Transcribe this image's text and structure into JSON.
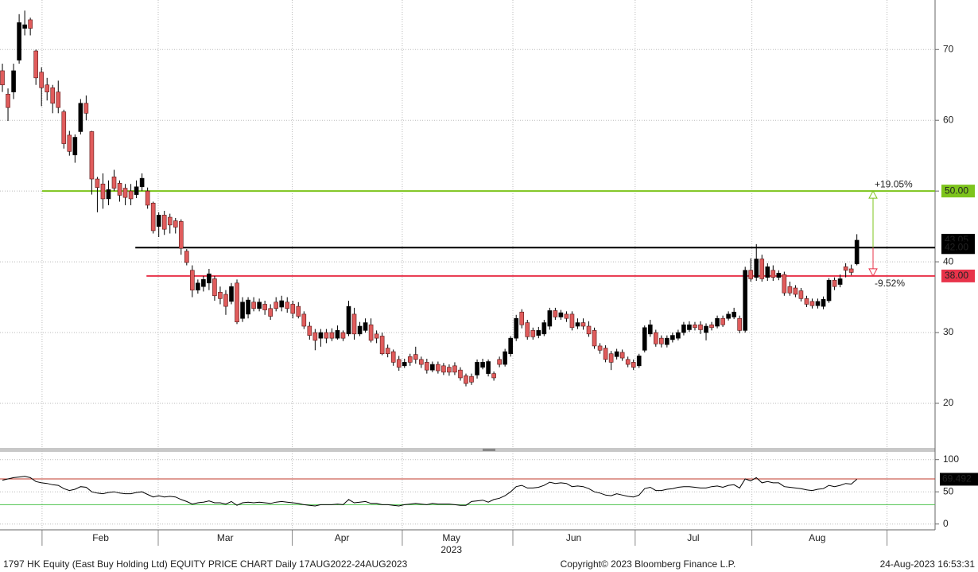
{
  "chart_data": [
    {
      "type": "candlestick",
      "open": [
        67,
        63.7,
        64,
        68.5,
        73,
        74.2,
        69.8,
        66.8,
        65,
        64.6,
        64,
        61.2,
        57.9,
        55.1,
        58.4,
        62.4,
        58.4,
        51.7,
        51,
        48.9,
        52,
        51.1,
        50.4,
        50,
        49.5,
        50.6,
        50,
        48.3,
        45,
        46.6,
        46.3,
        45.8,
        45.7,
        41.5,
        38.8,
        36,
        36.5,
        37,
        37.6,
        35.7,
        35.4,
        34.4,
        37,
        32,
        32.6,
        34.3,
        33.4,
        34,
        33.4,
        34.3,
        33.6,
        34.3,
        34,
        33.7,
        32.6,
        30.9,
        30,
        29.2,
        30,
        30,
        29.2,
        30,
        29.8,
        32.6,
        29.8,
        30.3,
        31.1,
        29.8,
        29.5,
        27.8,
        27.3,
        26.2,
        25.3,
        26.6,
        26.9,
        26.2,
        25.8,
        24.7,
        25.5,
        25.3,
        25.1,
        25.3,
        24.7,
        23.9,
        23.8,
        24,
        25.1,
        24.2,
        24.2,
        26.2,
        25.5,
        27,
        29.2,
        32.9,
        31.4,
        30.3,
        29.6,
        29.8,
        30.9,
        33.1,
        32.2,
        32.6,
        32.6,
        30.9,
        31.4,
        30.9,
        30.3,
        28.1,
        27.8,
        27,
        26.6,
        27.2,
        26.2,
        25.8,
        25.3,
        27.5,
        29.8,
        30,
        29.2,
        28.3,
        29,
        29.2,
        30,
        30.4,
        31.1,
        31.1,
        30,
        31.1,
        30.9,
        32,
        32,
        32.2,
        32,
        30.3,
        38.8,
        37.8,
        40.4,
        37.8,
        38.8,
        37.8,
        38.2,
        36.5,
        36.3,
        35.9,
        34.8,
        34.4,
        33.8,
        33.7,
        34.5,
        37.4,
        36.8,
        39.3,
        39,
        39.7
      ],
      "high": [
        68,
        64.5,
        68,
        75,
        75.5,
        74.5,
        70,
        67.5,
        66,
        65,
        65.6,
        61.5,
        58.5,
        58,
        63,
        63.5,
        58.5,
        52,
        52.5,
        51.5,
        53,
        51.5,
        51,
        51,
        51.5,
        52.5,
        50.5,
        48.5,
        47,
        47.2,
        46.8,
        46.2,
        46,
        41.8,
        39.5,
        37.5,
        38,
        39,
        38,
        36.5,
        36,
        37,
        37.5,
        35,
        35,
        35,
        34.8,
        34.5,
        34,
        35,
        35.2,
        35,
        34.5,
        34.3,
        33,
        31.5,
        30.5,
        30.5,
        30.5,
        30.6,
        31,
        30.3,
        34.5,
        33.5,
        31.5,
        32,
        32,
        30.3,
        30,
        28.3,
        27.6,
        26.7,
        26.3,
        27,
        28,
        26.6,
        26.3,
        25.9,
        25.9,
        25.7,
        25.5,
        25.8,
        25.1,
        24.2,
        24.2,
        26.2,
        26.3,
        26.2,
        24.5,
        26.6,
        27.7,
        29.5,
        32.5,
        33.3,
        31.8,
        30.7,
        30.8,
        31.8,
        33.5,
        33.5,
        33.2,
        33,
        33,
        32,
        32,
        31.6,
        30.7,
        28.5,
        28.2,
        27.4,
        27.7,
        27.6,
        26.6,
        26.2,
        27,
        31,
        31.8,
        30.4,
        29.6,
        29.6,
        30,
        30.4,
        31.5,
        31.6,
        31.5,
        31.6,
        31.3,
        31.5,
        32.4,
        32.4,
        33,
        33.5,
        32.4,
        39.3,
        40.5,
        42.5,
        41,
        39.8,
        39.5,
        38.8,
        38.6,
        37.2,
        36.7,
        36.3,
        35.2,
        34.8,
        34.8,
        35.1,
        37.7,
        37.8,
        38.2,
        39.8,
        39.6,
        43.9
      ],
      "low": [
        64,
        59.9,
        63,
        68,
        72,
        72,
        65,
        62,
        62.8,
        61,
        61,
        56,
        55,
        54,
        58,
        60,
        49.5,
        47,
        47.5,
        48,
        50,
        48.5,
        48,
        48,
        49,
        50,
        47.5,
        44,
        43.5,
        43.8,
        44,
        44,
        41,
        39.5,
        35,
        35.5,
        35.8,
        36,
        34.5,
        34,
        32.5,
        34,
        31.2,
        31.5,
        32,
        33,
        33,
        32.5,
        31.8,
        33,
        33,
        32.8,
        32,
        32,
        30.5,
        29,
        27.5,
        28,
        28.5,
        28.8,
        29,
        28.8,
        29.5,
        29,
        29.5,
        30,
        28.6,
        28.5,
        26.8,
        26.5,
        25.3,
        24.6,
        25,
        25.3,
        25.6,
        25,
        24.2,
        24.4,
        24.2,
        24,
        23.9,
        24,
        23.2,
        22.4,
        22.6,
        23.5,
        24.8,
        23.8,
        23.2,
        25.1,
        25.2,
        26.6,
        28.8,
        30.6,
        29,
        29,
        29.2,
        29.5,
        30.4,
        31.8,
        31.8,
        31.5,
        30.3,
        30.5,
        30.4,
        29.4,
        27.7,
        27,
        25.8,
        24.7,
        26.2,
        26,
        25.1,
        24.7,
        25,
        27.2,
        29.4,
        28,
        27.9,
        27.9,
        28.6,
        28.9,
        29.6,
        30.1,
        30.3,
        29.8,
        28.9,
        30.3,
        30.6,
        30.8,
        31.7,
        31.9,
        29.9,
        30,
        37.2,
        37.3,
        37.2,
        37.3,
        37.3,
        37.4,
        35.2,
        35.2,
        35,
        34.4,
        33.6,
        33.4,
        33.4,
        33.3,
        34.2,
        36,
        36.4,
        37.8,
        38.1,
        39.5
      ],
      "close": [
        65,
        61.8,
        67,
        73.8,
        73.5,
        73,
        66,
        64.6,
        64,
        62.4,
        61.8,
        56.7,
        55.6,
        57.6,
        62.4,
        61,
        51.7,
        50.5,
        48.9,
        50.2,
        50.4,
        49.4,
        49.1,
        48.9,
        50.6,
        51.8,
        48,
        44.4,
        46.6,
        44.6,
        45.2,
        44.9,
        41.9,
        39.9,
        36,
        37,
        37.5,
        38.3,
        35.2,
        34.8,
        33.7,
        36.5,
        31.5,
        34.3,
        34.6,
        33.4,
        34.3,
        33.2,
        32.3,
        33.4,
        34.5,
        33.4,
        32.7,
        32.3,
        30.9,
        29.6,
        28.9,
        30,
        29.2,
        29.2,
        30.3,
        29.2,
        33.7,
        29.8,
        30.9,
        31.4,
        28.9,
        29.2,
        27,
        27,
        25.8,
        25.1,
        25.8,
        25.8,
        26.2,
        25.5,
        24.7,
        25.5,
        24.6,
        24.4,
        24.4,
        24.4,
        23.6,
        22.8,
        23,
        25.8,
        25.8,
        25.9,
        23.6,
        25.5,
        27.3,
        29.2,
        32,
        31.1,
        29.4,
        29.4,
        30.3,
        31.4,
        33.1,
        32.2,
        32.8,
        32,
        30.7,
        31.4,
        30.9,
        29.8,
        28.1,
        27.5,
        26.2,
        25.8,
        27.3,
        26.4,
        25.5,
        25.1,
        26.7,
        30.7,
        31.1,
        28.4,
        28.4,
        29.2,
        29.6,
        30,
        31.1,
        31.1,
        30.7,
        30.4,
        30.9,
        30.7,
        32,
        31.1,
        32.6,
        32.9,
        30.3,
        38.8,
        37.6,
        40.4,
        37.6,
        39.3,
        37.8,
        38.4,
        35.6,
        35.6,
        35.4,
        34.8,
        34,
        33.8,
        34.4,
        34.7,
        37.4,
        36.5,
        37.6,
        38.8,
        38.5,
        43.05
      ],
      "ylim": [
        13.7,
        77
      ],
      "yticks": [
        20,
        30,
        40,
        50,
        60,
        70
      ],
      "xlim": [
        -0.43,
        167
      ],
      "xticks": [
        7.1,
        27.9,
        51.9,
        71.6,
        91.4,
        113.3,
        134.2,
        158.4
      ],
      "xlabels": [
        {
          "value": 17.6,
          "label": "Feb"
        },
        {
          "value": 39.9,
          "label": "Mar"
        },
        {
          "value": 60.8,
          "label": "Apr"
        },
        {
          "value": 80.4,
          "label": "May"
        },
        {
          "value": 102.3,
          "label": "Jun"
        },
        {
          "value": 123.7,
          "label": "Jul"
        },
        {
          "value": 145.9,
          "label": "Aug"
        }
      ],
      "year_label": {
        "value": 80.4,
        "label": "2023"
      },
      "hlines": [
        {
          "value": 50,
          "label": "50.00",
          "color": "#7dc41c",
          "start": 7.1
        },
        {
          "value": 42,
          "label": "42.00",
          "color": "#000000",
          "start": 23.8
        },
        {
          "value": 38,
          "label": "38.00",
          "color": "#e8334a",
          "start": 25.8
        }
      ],
      "annotations": [
        {
          "text": "+19.05%",
          "color": "#7dc41c"
        },
        {
          "text": "-9.52%",
          "color": "#e8334a"
        }
      ],
      "up_color": "#000000",
      "down_color": "#e05c5c",
      "grid": true
    },
    {
      "type": "line",
      "values": [
        68,
        70,
        72,
        73,
        74,
        72,
        66,
        64,
        63,
        61,
        60,
        55,
        52,
        54,
        58,
        57,
        50,
        48,
        47,
        49,
        50,
        48,
        47,
        47,
        49,
        50,
        46,
        42,
        44,
        42,
        43,
        42,
        38,
        35,
        31,
        33,
        34,
        36,
        33,
        33,
        31,
        35,
        29,
        33,
        34,
        33,
        34,
        33,
        32,
        34,
        35,
        34,
        33,
        32,
        30,
        29,
        28,
        30,
        30,
        30,
        31,
        30,
        38,
        33,
        34,
        35,
        32,
        32,
        30,
        30,
        29,
        28,
        30,
        31,
        32,
        31,
        30,
        32,
        31,
        31,
        31,
        30,
        29,
        29,
        35,
        36,
        37,
        34,
        38,
        40,
        44,
        50,
        58,
        60,
        56,
        56,
        57,
        60,
        65,
        63,
        64,
        63,
        58,
        59,
        58,
        55,
        50,
        48,
        45,
        44,
        47,
        45,
        43,
        42,
        45,
        55,
        57,
        52,
        52,
        54,
        55,
        57,
        58,
        58,
        57,
        56,
        56,
        58,
        59,
        57,
        60,
        61,
        56,
        70,
        67,
        72,
        64,
        66,
        64,
        64,
        58,
        57,
        56,
        55,
        53,
        52,
        54,
        55,
        60,
        58,
        60,
        63,
        62,
        69.492
      ],
      "color": "#000000",
      "ylim": [
        -9,
        112
      ],
      "yticks": [
        0,
        50,
        100
      ],
      "hlines": [
        {
          "value": 70,
          "color": "#c0392b"
        },
        {
          "value": 30,
          "color": "#4cc24c"
        }
      ]
    }
  ],
  "footer": {
    "left": "1797 HK Equity (East Buy Holding Ltd) EQUITY PRICE CHART  Daily 17AUG2022-24AUG2023",
    "center": "Copyright© 2023 Bloomberg Finance L.P.",
    "right": "24-Aug-2023 16:53:31"
  }
}
